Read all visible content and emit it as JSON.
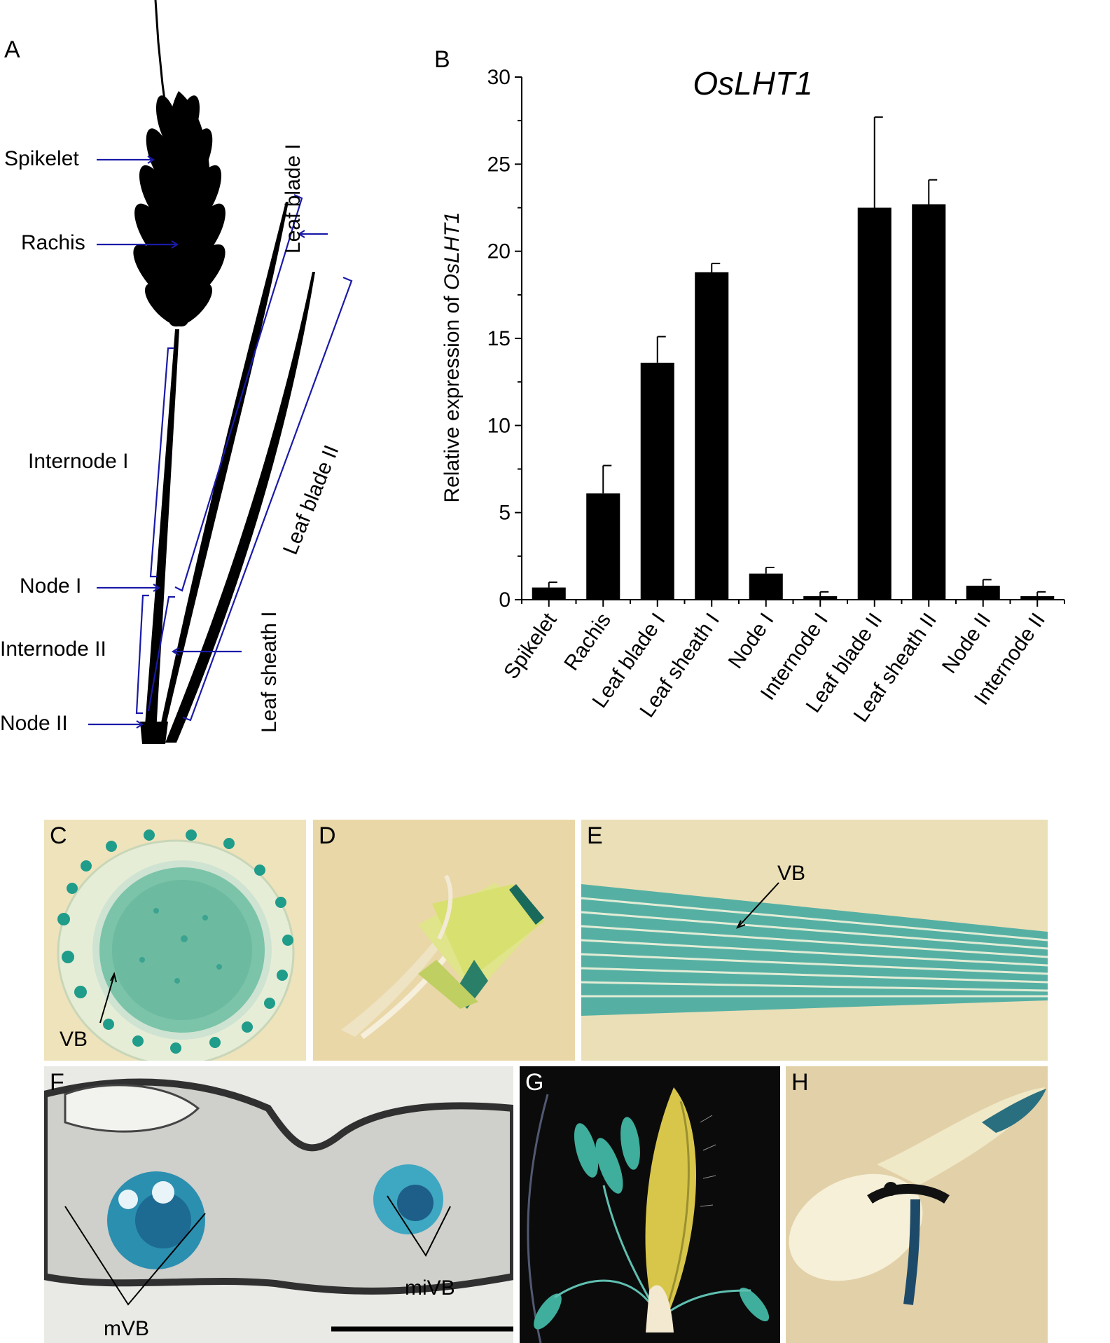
{
  "panels": {
    "a": {
      "letter": "A"
    },
    "b": {
      "letter": "B"
    },
    "c": {
      "letter": "C",
      "annotation": "VB"
    },
    "d": {
      "letter": "D"
    },
    "e": {
      "letter": "E",
      "annotation": "VB"
    },
    "f": {
      "letter": "F",
      "annotation_left": "mVB",
      "annotation_right": "miVB"
    },
    "g": {
      "letter": "G"
    },
    "h": {
      "letter": "H"
    }
  },
  "plant_labels": {
    "spikelet": "Spikelet",
    "rachis": "Rachis",
    "internode_1": "Internode I",
    "node_1": "Node I",
    "internode_2": "Internode II",
    "node_2": "Node II",
    "leaf_blade_1": "Leaf blade I",
    "leaf_blade_2": "Leaf blade II",
    "leaf_sheath_1": "Leaf sheath I"
  },
  "colors": {
    "bar": "#000000",
    "plant": "#000000",
    "bracket": "#1a1aa8",
    "gus_blue": "#2aa39a",
    "photo_beige": "#e9dcb4",
    "photo_dark": "#0b0b0b"
  },
  "chart_data": {
    "type": "bar",
    "title": "OsLHT1",
    "ylabel_prefix": "Relative expression of ",
    "ylabel_gene": "OsLHT1",
    "xlabel": "",
    "ylim": [
      0,
      30
    ],
    "yticks": [
      0,
      5,
      10,
      15,
      20,
      25,
      30
    ],
    "grid": false,
    "categories": [
      "Spikelet",
      "Rachis",
      "Leaf blade I",
      "Leaf sheath I",
      "Node I",
      "Internode I",
      "Leaf blade II",
      "Leaf sheath II",
      "Node II",
      "Internode II"
    ],
    "values": [
      0.7,
      6.1,
      13.6,
      18.8,
      1.5,
      0.2,
      22.5,
      22.7,
      0.8,
      0.2
    ],
    "errors": [
      0.3,
      1.6,
      1.5,
      0.5,
      0.35,
      0.25,
      5.2,
      1.4,
      0.35,
      0.25
    ]
  }
}
